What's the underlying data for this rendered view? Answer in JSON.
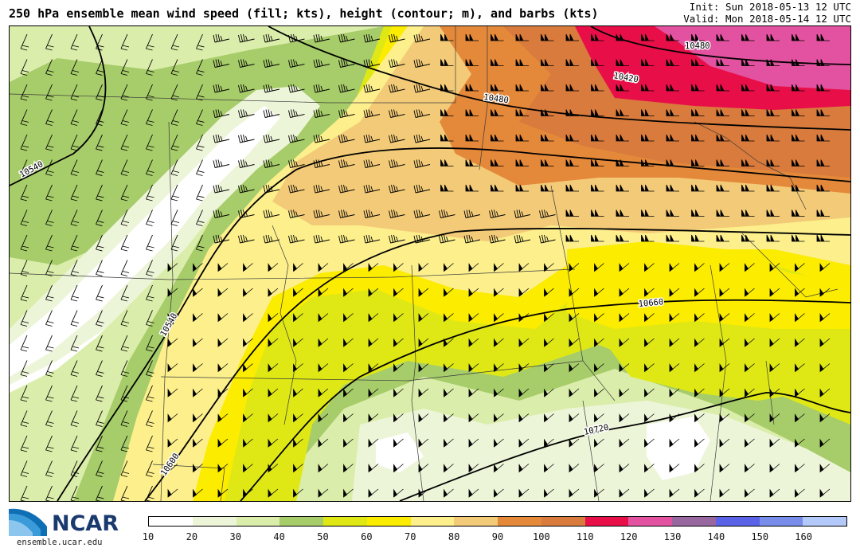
{
  "title": "250 hPa ensemble mean wind speed (fill; kts), height (contour; m), and barbs (kts)",
  "init_label": "Init: Sun 2018-05-13 12 UTC",
  "valid_label": "Valid: Mon 2018-05-14 12 UTC",
  "logo": {
    "text": "NCAR",
    "url_text": "ensemble.ucar.edu"
  },
  "colors": {
    "fill_levels": [
      "#ffffff",
      "#edf5d9",
      "#dbedaa",
      "#a7cc6a",
      "#dfe815",
      "#fbec00",
      "#fcef8c",
      "#f3cb78",
      "#e4883a",
      "#d87b3c",
      "#e80f48",
      "#e352a0",
      "#99679f",
      "#5a63e8",
      "#788de9",
      "#b3c9f9"
    ],
    "contour": "#000000"
  },
  "colorbar": {
    "ticks": [
      "10",
      "20",
      "30",
      "40",
      "50",
      "60",
      "70",
      "80",
      "90",
      "100",
      "110",
      "120",
      "130",
      "140",
      "150",
      "160"
    ]
  },
  "contours": {
    "labels": [
      "10420",
      "10480",
      "10480",
      "10540",
      "10540",
      "10600",
      "10660",
      "10720"
    ]
  }
}
